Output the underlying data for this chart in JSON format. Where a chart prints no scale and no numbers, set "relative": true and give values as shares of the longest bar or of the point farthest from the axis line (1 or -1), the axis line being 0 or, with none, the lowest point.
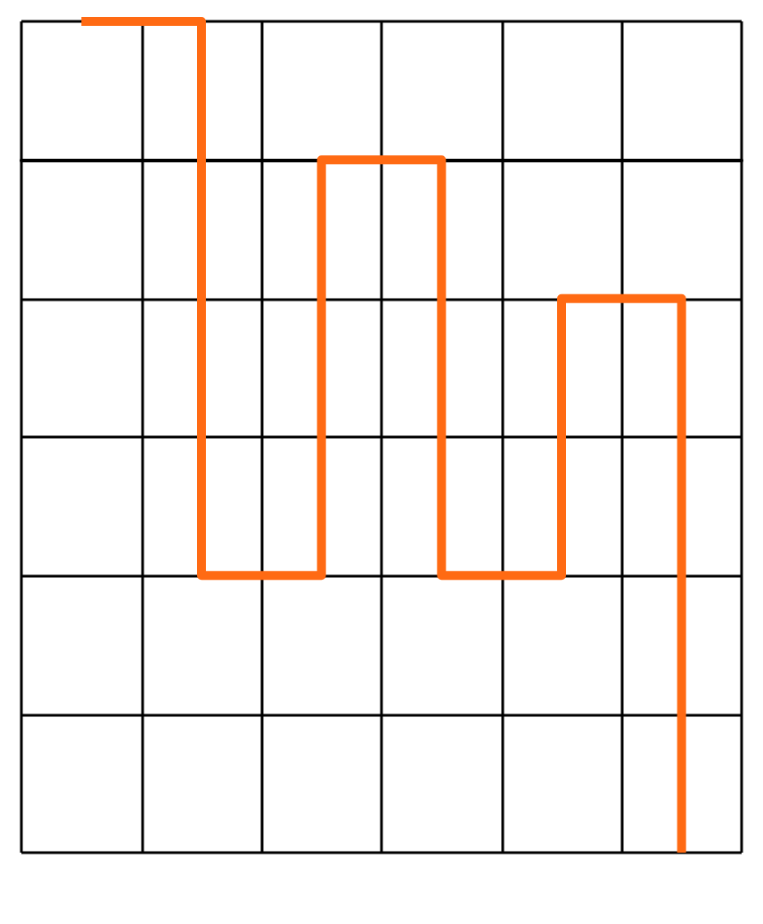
{
  "chart_data": {
    "type": "step",
    "relative": true,
    "categories": [
      null,
      null,
      null,
      null,
      null,
      null
    ],
    "values": [
      0.2,
      -0.6,
      0,
      -0.6,
      -0.2,
      -1
    ],
    "color": "#ff6a13",
    "grid": true,
    "marker": "none"
  }
}
